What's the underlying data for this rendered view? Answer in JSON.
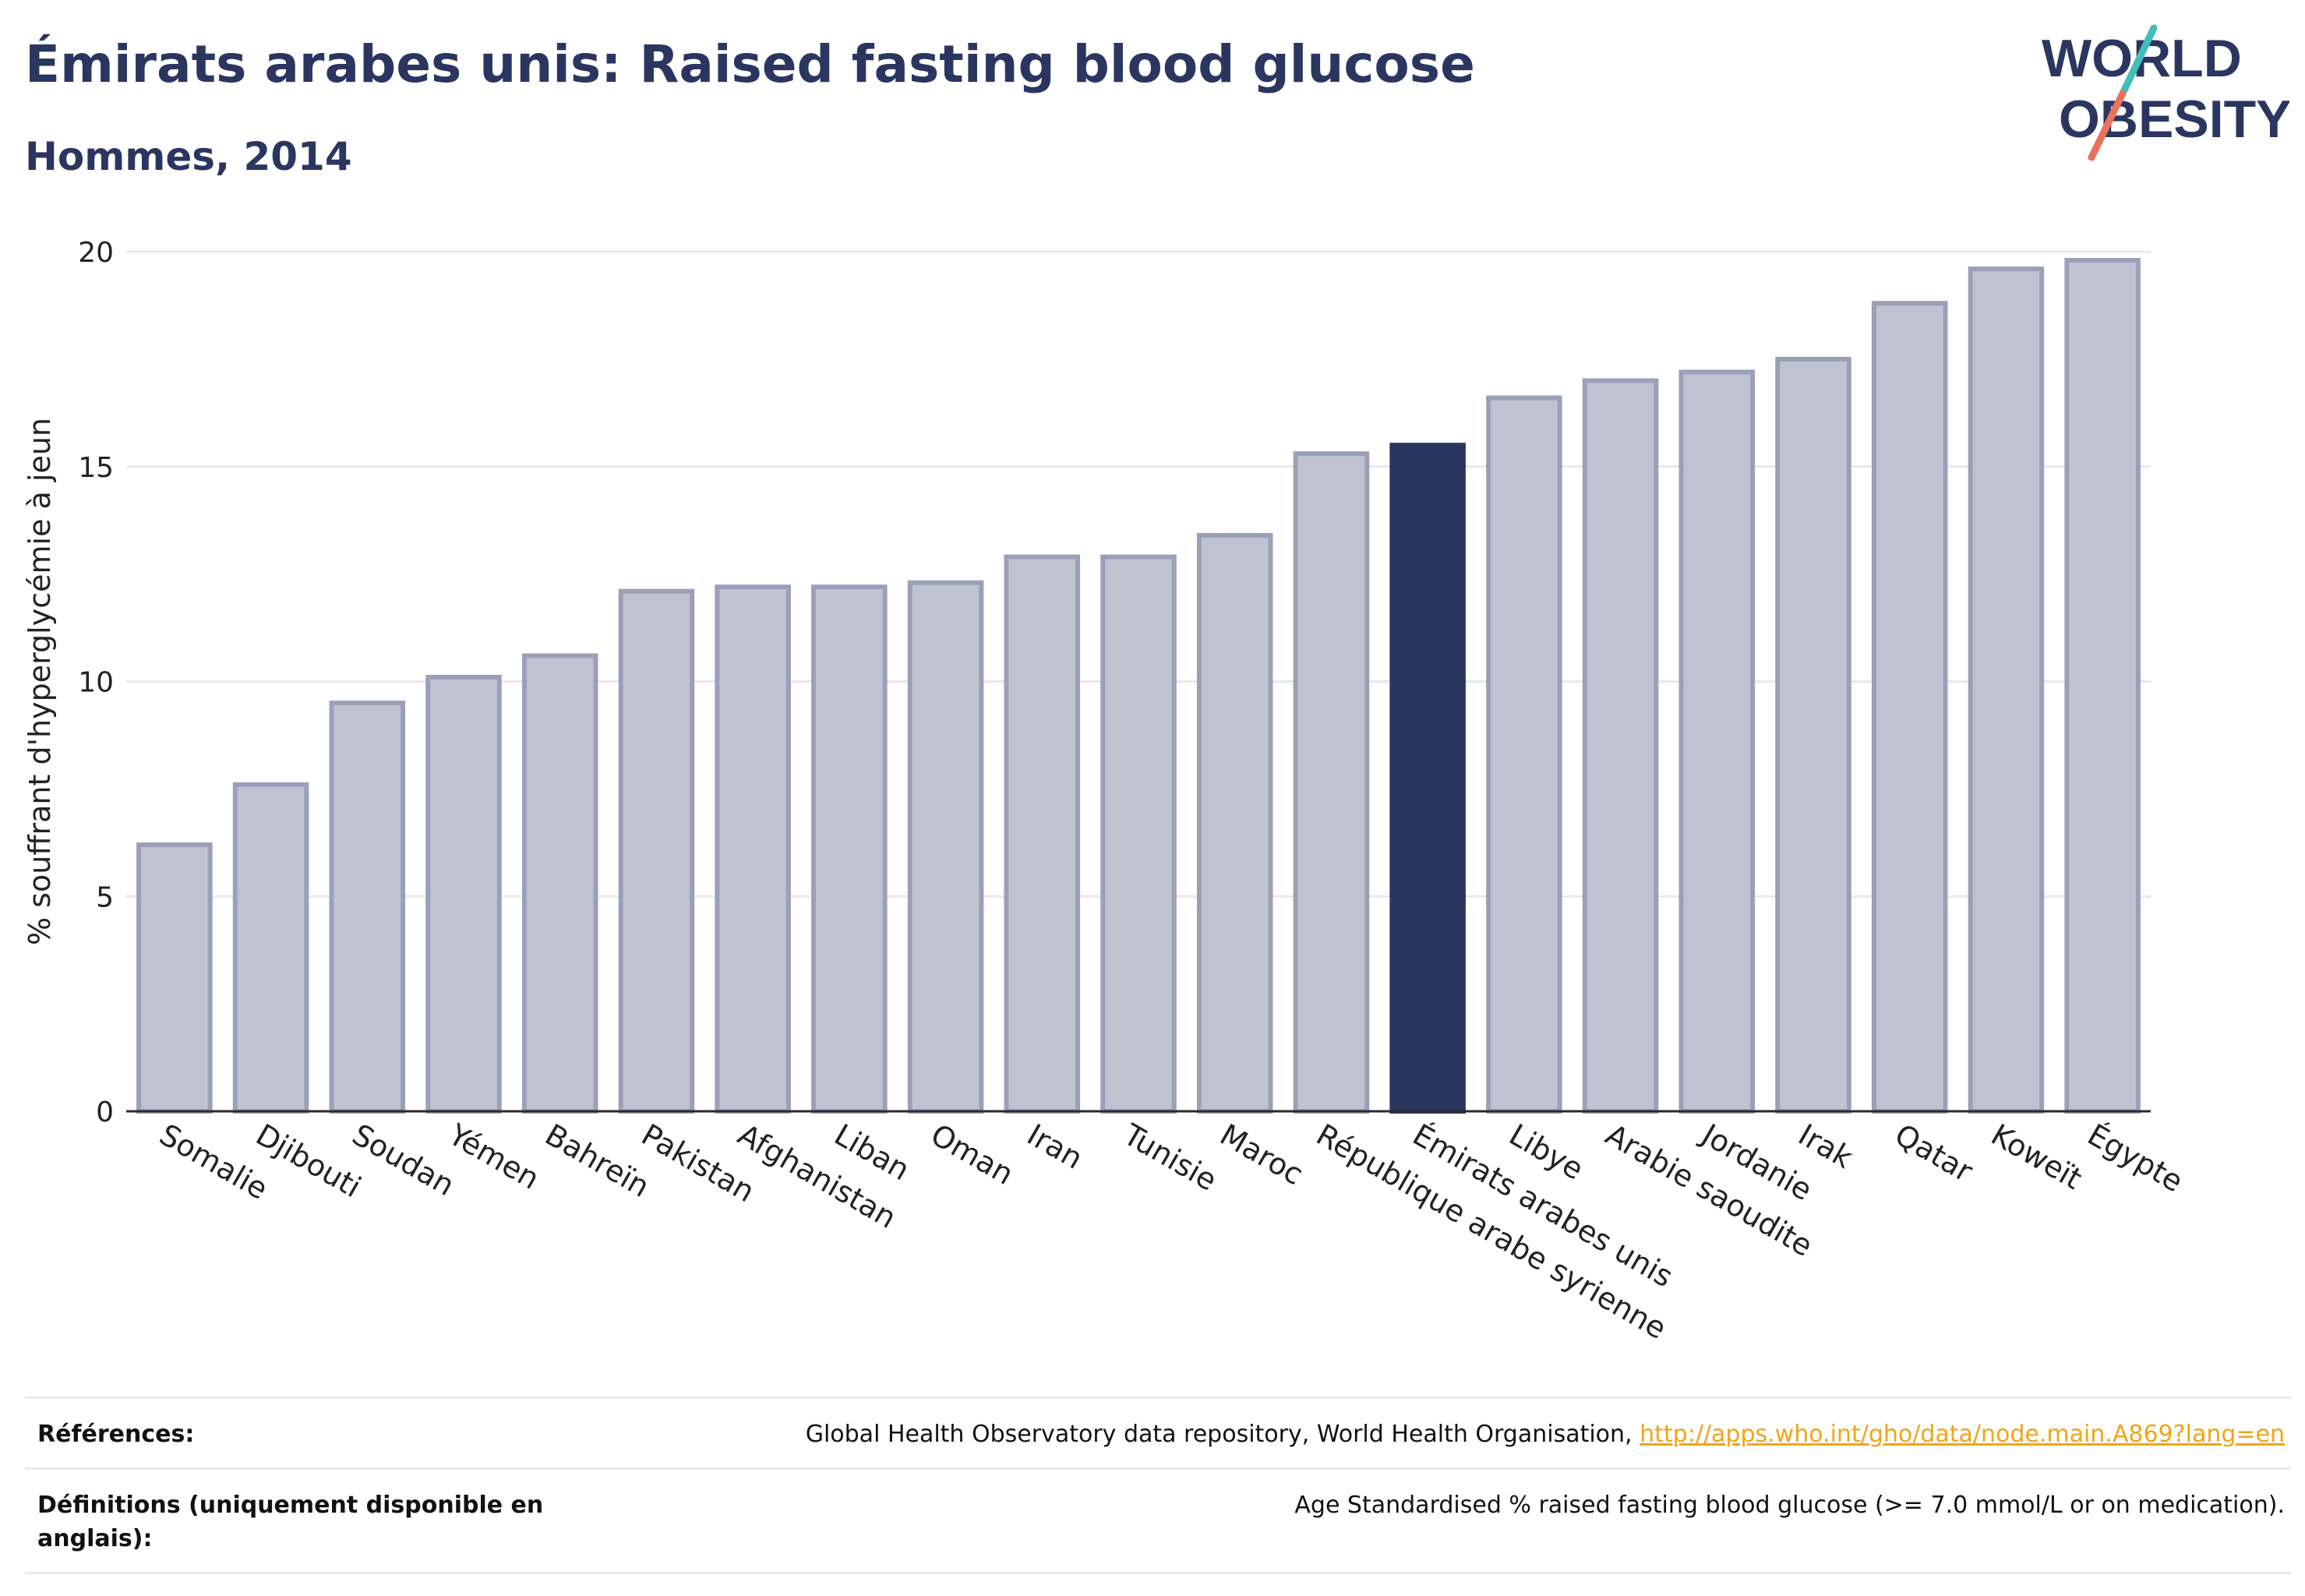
{
  "header": {
    "title": "Émirats arabes unis: Raised fasting blood glucose",
    "subtitle": "Hommes, 2014"
  },
  "logo": {
    "line1": "WORLD",
    "line2": "OBESITY",
    "colors": [
      "#2b3660",
      "#e8735a",
      "#3fbfb8"
    ]
  },
  "colors": {
    "bar": "#bfc3d1",
    "bar_border": "#9aa0b8",
    "highlight": "#2b3660",
    "grid": "#e6e8ee",
    "axis": "#2a2a2a"
  },
  "chart_data": {
    "type": "bar",
    "ylabel": "% souffrant d'hyperglycémie à jeun",
    "ylim": [
      0,
      20
    ],
    "yticks": [
      0,
      5,
      10,
      15,
      20
    ],
    "categories": [
      "Somalie",
      "Djibouti",
      "Soudan",
      "Yémen",
      "Bahreïn",
      "Pakistan",
      "Afghanistan",
      "Liban",
      "Oman",
      "Iran",
      "Tunisie",
      "Maroc",
      "République arabe syrienne",
      "Émirats arabes unis",
      "Libye",
      "Arabie saoudite",
      "Jordanie",
      "Irak",
      "Qatar",
      "Koweït",
      "Égypte"
    ],
    "values": [
      6.2,
      7.6,
      9.5,
      10.1,
      10.6,
      12.1,
      12.2,
      12.2,
      12.3,
      12.9,
      12.9,
      13.4,
      15.3,
      15.5,
      16.6,
      17.0,
      17.2,
      17.5,
      18.8,
      19.6,
      19.8
    ],
    "highlight": "Émirats arabes unis",
    "grid": true
  },
  "footer": {
    "references_label": "Références:",
    "references_text": "Global Health Observatory data repository, World Health Organisation,",
    "references_link": "http://apps.who.int/gho/data/node.main.A869?lang=en",
    "definitions_label": "Définitions (uniquement disponible en anglais):",
    "definitions_text": "Age Standardised % raised fasting blood glucose (>= 7.0 mmol/L or on medication)."
  }
}
